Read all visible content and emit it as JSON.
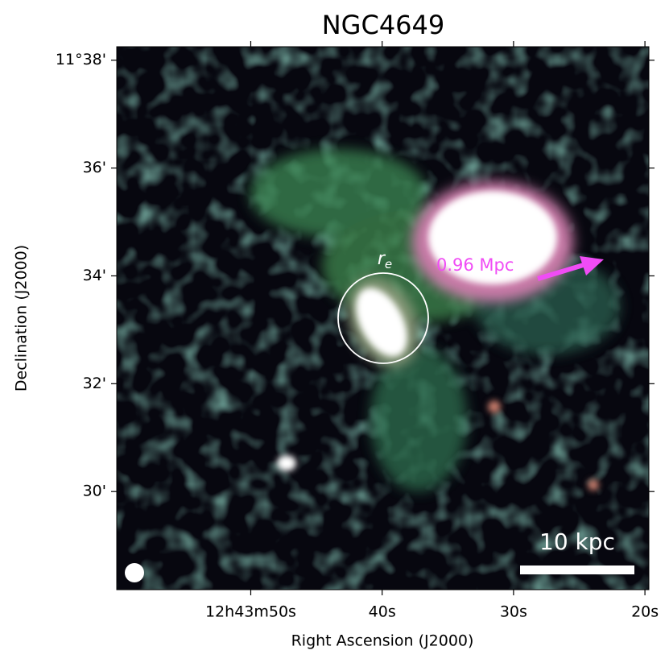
{
  "chart_data": {
    "type": "image",
    "title": "NGC4649",
    "xlabel": "Right Ascension (J2000)",
    "ylabel": "Declination (J2000)",
    "xlim": [
      60.2,
      19.7
    ],
    "xticks": [
      {
        "value": 50,
        "label": "12h43m50s"
      },
      {
        "value": 40,
        "label": "40s"
      },
      {
        "value": 30,
        "label": "30s"
      },
      {
        "value": 20,
        "label": "20s"
      }
    ],
    "ylim": [
      28.18,
      38.25
    ],
    "yticks": [
      {
        "value": 38,
        "label": "11°38'"
      },
      {
        "value": 36,
        "label": "36'"
      },
      {
        "value": 34,
        "label": "34'"
      },
      {
        "value": 32,
        "label": "32'"
      },
      {
        "value": 30,
        "label": "30'"
      }
    ],
    "annotations": {
      "effective_radius": "r",
      "effective_radius_sub": "e",
      "distance": "0.96 Mpc",
      "scale_bar": "10 kpc"
    }
  }
}
